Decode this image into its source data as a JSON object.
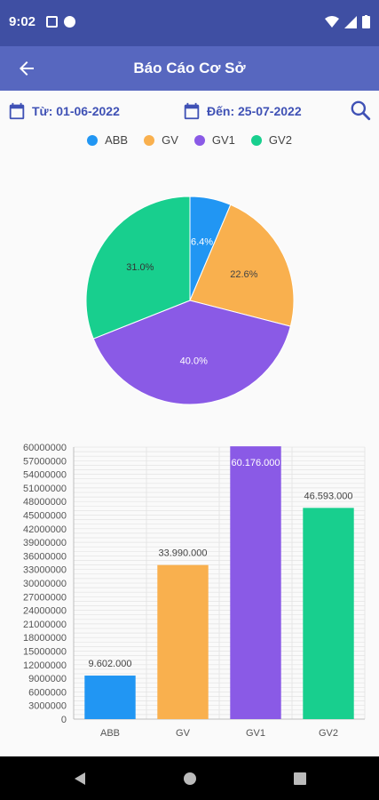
{
  "status": {
    "time": "9:02"
  },
  "header": {
    "title": "Báo Cáo Cơ Sở"
  },
  "filters": {
    "from_label": "Từ: 01-06-2022",
    "to_label": "Đến: 25-07-2022"
  },
  "icons": {
    "back": "arrow-left-icon",
    "calendar": "calendar-icon",
    "search": "search-icon"
  },
  "colors": {
    "statusbar": "#3f4fa3",
    "appbar": "#5767bf",
    "accent": "#3f51b5"
  },
  "legend": [
    {
      "label": "ABB",
      "color": "#2196f3"
    },
    {
      "label": "GV",
      "color": "#f9b04e"
    },
    {
      "label": "GV1",
      "color": "#8a5ae6"
    },
    {
      "label": "GV2",
      "color": "#18cf8e"
    }
  ],
  "chart_data": [
    {
      "type": "pie",
      "categories": [
        "ABB",
        "GV",
        "GV1",
        "GV2"
      ],
      "values": [
        6.4,
        22.6,
        40.0,
        31.0
      ],
      "labels": [
        "6.4%",
        "22.6%",
        "40.0%",
        "31.0%"
      ],
      "colors": [
        "#2196f3",
        "#f9b04e",
        "#8a5ae6",
        "#18cf8e"
      ]
    },
    {
      "type": "bar",
      "categories": [
        "ABB",
        "GV",
        "GV1",
        "GV2"
      ],
      "values": [
        9602000,
        33990000,
        60176000,
        46593000
      ],
      "data_labels": [
        "9.602.000",
        "33.990.000",
        "60.176.000",
        "46.593.000"
      ],
      "colors": [
        "#2196f3",
        "#f9b04e",
        "#8a5ae6",
        "#18cf8e"
      ],
      "ylim": [
        0,
        60000000
      ],
      "ytick_step": 3000000,
      "yticks": [
        "0",
        "3000000",
        "6000000",
        "9000000",
        "12000000",
        "15000000",
        "18000000",
        "21000000",
        "24000000",
        "27000000",
        "30000000",
        "33000000",
        "36000000",
        "39000000",
        "42000000",
        "45000000",
        "48000000",
        "51000000",
        "54000000",
        "57000000",
        "60000000"
      ],
      "grid": true
    }
  ]
}
